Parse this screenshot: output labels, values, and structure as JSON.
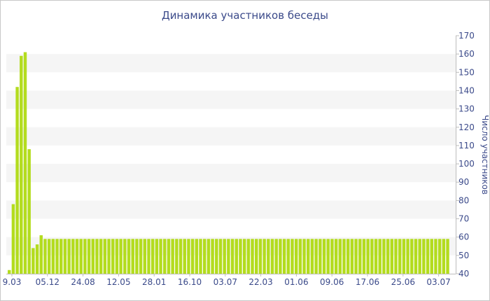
{
  "chart_data": {
    "type": "bar",
    "title": "Динамика участников беседы",
    "xlabel": "",
    "ylabel": "Число участников",
    "ylim": [
      40,
      170
    ],
    "yticks": [
      40,
      50,
      60,
      70,
      80,
      90,
      100,
      110,
      120,
      130,
      140,
      150,
      160,
      170
    ],
    "x_tick_labels": [
      "9.03",
      "05.12",
      "24.08",
      "12.05",
      "28.01",
      "16.10",
      "03.07",
      "22.03",
      "01.06",
      "09.06",
      "17.06",
      "25.06",
      "03.07"
    ],
    "grid": "alternating horizontal bands",
    "values": [
      42,
      78,
      142,
      159,
      161,
      108,
      54,
      56,
      61,
      59,
      59,
      59,
      59,
      59,
      59,
      59,
      59,
      59,
      59,
      59,
      59,
      59,
      59,
      59,
      59,
      59,
      59,
      59,
      59,
      59,
      59,
      59,
      59,
      59,
      59,
      59,
      59,
      59,
      59,
      59,
      59,
      59,
      59,
      59,
      59,
      59,
      59,
      59,
      59,
      59,
      59,
      59,
      59,
      59,
      59,
      59,
      59,
      59,
      59,
      59,
      59,
      59,
      59,
      59,
      59,
      59,
      59,
      59,
      59,
      59,
      59,
      59,
      59,
      59,
      59,
      59,
      59,
      59,
      59,
      59,
      59,
      59,
      59,
      59,
      59,
      59,
      59,
      59,
      59,
      59,
      59,
      59,
      59,
      59,
      59,
      59,
      59,
      59,
      59,
      59,
      59,
      59,
      59,
      59,
      59,
      59,
      59,
      59,
      59,
      59,
      59
    ],
    "colors": {
      "bar": "#b3dc1e",
      "title": "#3b4a8a",
      "band": "#f5f5f5",
      "axis": "#bdbdbd"
    }
  }
}
